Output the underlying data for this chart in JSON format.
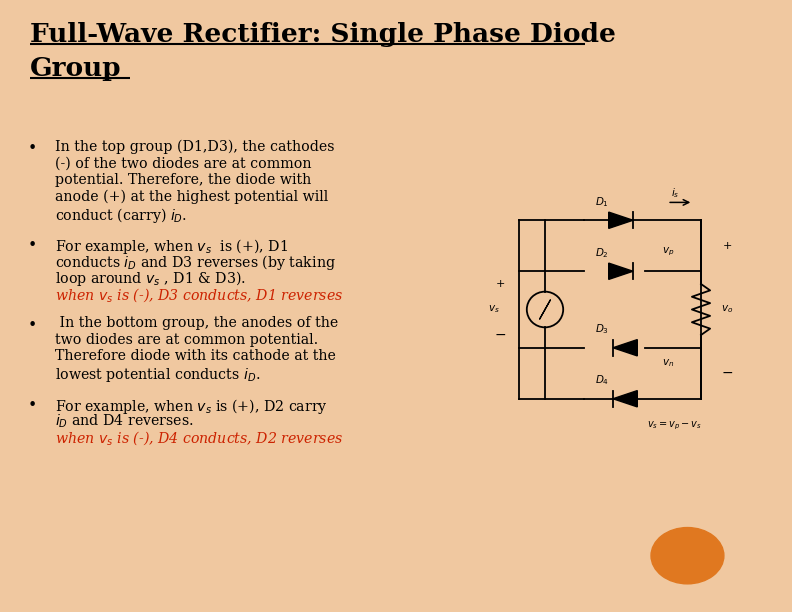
{
  "title_line1": "Full-Wave Rectifier: Single Phase Diode",
  "title_line2": "Group",
  "bg_color": "#FFFFFF",
  "slide_bg": "#F0C8A0",
  "text_color": "#000000",
  "red_color": "#CC2200",
  "bullet1": [
    "In the top group (D1,D3), the cathodes",
    "(-) of the two diodes are at common",
    "potential. Therefore, the diode with",
    "anode (+) at the highest potential will",
    "conduct (carry) $i_D$."
  ],
  "bullet2": [
    "For example, when $v_s$  is (+), D1",
    "conducts $i_D$ and D3 reverses (by taking",
    "loop around $v_s$ , D1 & D3)."
  ],
  "bullet2_red": "when $v_s$ is (-), D3 conducts, D1 reverses",
  "bullet3": [
    " In the bottom group, the anodes of the",
    "two diodes are at common potential.",
    "Therefore diode with its cathode at the",
    "lowest potential conducts $i_D$."
  ],
  "bullet4": [
    "For example, when $v_s$ is (+), D2 carry",
    "$i_D$ and D4 reverses."
  ],
  "bullet4_red": "when $v_s$ is (-), D4 conducts, D2 reverses",
  "orange_color": "#E07820"
}
